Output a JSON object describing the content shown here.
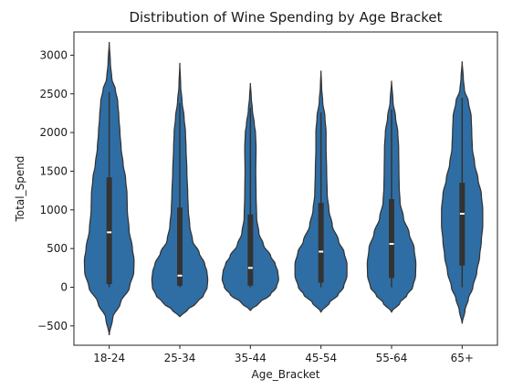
{
  "chart_data": {
    "type": "violin",
    "title": "Distribution of Wine Spending by Age Bracket",
    "xlabel": "Age_Bracket",
    "ylabel": "Total_Spend",
    "categories": [
      "18-24",
      "25-34",
      "35-44",
      "45-54",
      "55-64",
      "65+"
    ],
    "ylim": [
      -750,
      3300
    ],
    "yticks": [
      -500,
      0,
      500,
      1000,
      1500,
      2000,
      2500,
      3000
    ],
    "ytick_labels": [
      "−500",
      "0",
      "500",
      "1000",
      "1500",
      "2000",
      "2500",
      "3000"
    ],
    "grid": false,
    "violin_color": "#2f6ea4",
    "violin_edge_color": "#333333",
    "violins": [
      {
        "category": "18-24",
        "kde_range": [
          -620,
          3170
        ],
        "whisker": [
          0,
          2520
        ],
        "q1": 40,
        "median": 710,
        "q3": 1420,
        "profile": [
          [
            -620,
            0.0
          ],
          [
            -400,
            0.12
          ],
          [
            -200,
            0.4
          ],
          [
            0,
            0.72
          ],
          [
            200,
            0.87
          ],
          [
            350,
            0.88
          ],
          [
            500,
            0.82
          ],
          [
            750,
            0.7
          ],
          [
            1000,
            0.64
          ],
          [
            1200,
            0.63
          ],
          [
            1400,
            0.58
          ],
          [
            1600,
            0.49
          ],
          [
            1800,
            0.42
          ],
          [
            2000,
            0.38
          ],
          [
            2200,
            0.34
          ],
          [
            2400,
            0.3
          ],
          [
            2550,
            0.22
          ],
          [
            2700,
            0.09
          ],
          [
            2900,
            0.04
          ],
          [
            3170,
            0.0
          ]
        ]
      },
      {
        "category": "25-34",
        "kde_range": [
          -380,
          2900
        ],
        "whisker": [
          0,
          2380
        ],
        "q1": 20,
        "median": 150,
        "q3": 1030,
        "profile": [
          [
            -380,
            0.0
          ],
          [
            -300,
            0.25
          ],
          [
            -200,
            0.6
          ],
          [
            -100,
            0.85
          ],
          [
            0,
            0.97
          ],
          [
            100,
            0.99
          ],
          [
            200,
            0.96
          ],
          [
            300,
            0.88
          ],
          [
            450,
            0.68
          ],
          [
            600,
            0.45
          ],
          [
            800,
            0.35
          ],
          [
            1000,
            0.3
          ],
          [
            1200,
            0.28
          ],
          [
            1500,
            0.25
          ],
          [
            1800,
            0.22
          ],
          [
            2000,
            0.2
          ],
          [
            2200,
            0.15
          ],
          [
            2400,
            0.08
          ],
          [
            2600,
            0.03
          ],
          [
            2900,
            0.0
          ]
        ]
      },
      {
        "category": "35-44",
        "kde_range": [
          -300,
          2640
        ],
        "whisker": [
          0,
          2320
        ],
        "q1": 20,
        "median": 250,
        "q3": 940,
        "profile": [
          [
            -300,
            0.0
          ],
          [
            -200,
            0.32
          ],
          [
            -100,
            0.7
          ],
          [
            0,
            0.92
          ],
          [
            100,
            1.0
          ],
          [
            200,
            0.97
          ],
          [
            300,
            0.88
          ],
          [
            400,
            0.72
          ],
          [
            550,
            0.46
          ],
          [
            700,
            0.3
          ],
          [
            900,
            0.22
          ],
          [
            1200,
            0.2
          ],
          [
            1500,
            0.19
          ],
          [
            1800,
            0.2
          ],
          [
            2000,
            0.18
          ],
          [
            2100,
            0.14
          ],
          [
            2300,
            0.07
          ],
          [
            2450,
            0.03
          ],
          [
            2640,
            0.0
          ]
        ]
      },
      {
        "category": "45-54",
        "kde_range": [
          -320,
          2800
        ],
        "whisker": [
          0,
          2260
        ],
        "q1": 60,
        "median": 460,
        "q3": 1090,
        "profile": [
          [
            -320,
            0.0
          ],
          [
            -200,
            0.3
          ],
          [
            -100,
            0.6
          ],
          [
            0,
            0.8
          ],
          [
            150,
            0.92
          ],
          [
            300,
            0.92
          ],
          [
            450,
            0.82
          ],
          [
            600,
            0.62
          ],
          [
            800,
            0.4
          ],
          [
            1000,
            0.28
          ],
          [
            1200,
            0.22
          ],
          [
            1500,
            0.2
          ],
          [
            1800,
            0.18
          ],
          [
            2000,
            0.18
          ],
          [
            2200,
            0.14
          ],
          [
            2400,
            0.06
          ],
          [
            2600,
            0.02
          ],
          [
            2800,
            0.0
          ]
        ]
      },
      {
        "category": "55-64",
        "kde_range": [
          -320,
          2670
        ],
        "whisker": [
          0,
          2300
        ],
        "q1": 120,
        "median": 560,
        "q3": 1140,
        "profile": [
          [
            -320,
            0.0
          ],
          [
            -200,
            0.3
          ],
          [
            -100,
            0.55
          ],
          [
            0,
            0.75
          ],
          [
            150,
            0.85
          ],
          [
            300,
            0.86
          ],
          [
            500,
            0.8
          ],
          [
            700,
            0.62
          ],
          [
            900,
            0.42
          ],
          [
            1100,
            0.3
          ],
          [
            1300,
            0.27
          ],
          [
            1500,
            0.26
          ],
          [
            1800,
            0.25
          ],
          [
            2000,
            0.22
          ],
          [
            2200,
            0.14
          ],
          [
            2400,
            0.05
          ],
          [
            2670,
            0.0
          ]
        ]
      },
      {
        "category": "65+",
        "kde_range": [
          -470,
          2920
        ],
        "whisker": [
          0,
          2450
        ],
        "q1": 280,
        "median": 950,
        "q3": 1350,
        "profile": [
          [
            -470,
            0.0
          ],
          [
            -300,
            0.1
          ],
          [
            -150,
            0.22
          ],
          [
            0,
            0.38
          ],
          [
            200,
            0.52
          ],
          [
            400,
            0.62
          ],
          [
            600,
            0.68
          ],
          [
            800,
            0.73
          ],
          [
            1000,
            0.73
          ],
          [
            1200,
            0.68
          ],
          [
            1400,
            0.56
          ],
          [
            1600,
            0.44
          ],
          [
            1800,
            0.36
          ],
          [
            2000,
            0.34
          ],
          [
            2200,
            0.32
          ],
          [
            2400,
            0.22
          ],
          [
            2550,
            0.08
          ],
          [
            2700,
            0.04
          ],
          [
            2920,
            0.0
          ]
        ]
      }
    ]
  }
}
